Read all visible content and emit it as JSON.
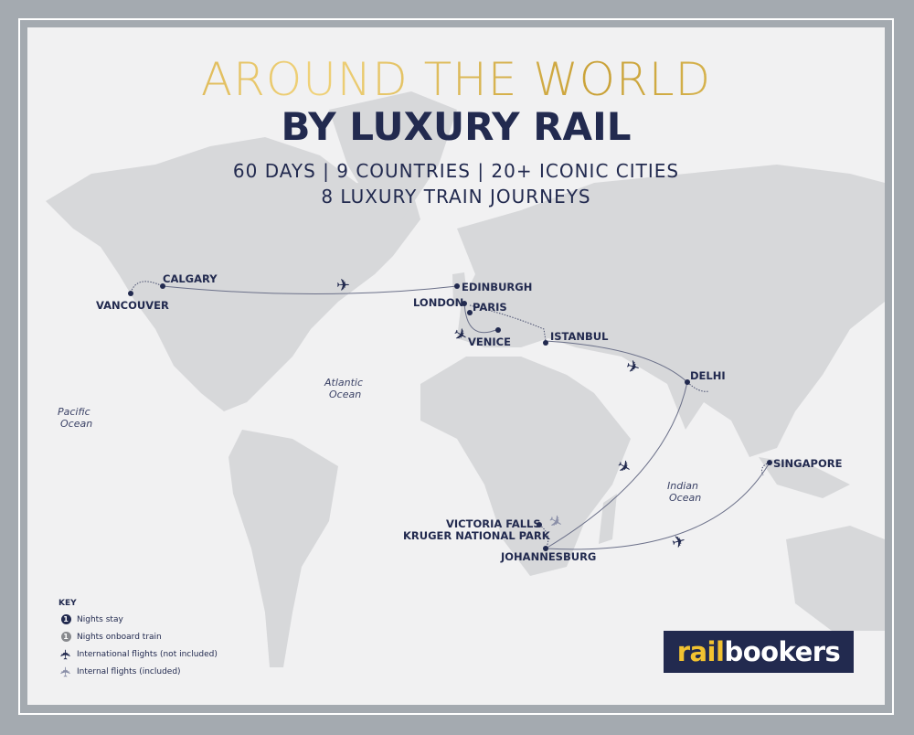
{
  "title": {
    "line1": "AROUND THE WORLD",
    "line2": "BY LUXURY RAIL"
  },
  "subtitle": {
    "line1": "60 DAYS | 9 COUNTRIES | 20+ ICONIC CITIES",
    "line2": "8 LUXURY TRAIN JOURNEYS"
  },
  "cities": {
    "vancouver": "VANCOUVER",
    "calgary": "CALGARY",
    "edinburgh": "EDINBURGH",
    "london": "LONDON",
    "paris": "PARIS",
    "venice": "VENICE",
    "istanbul": "ISTANBUL",
    "delhi": "DELHI",
    "singapore": "SINGAPORE",
    "victoria_falls": "VICTORIA FALLS",
    "kruger": "KRUGER NATIONAL PARK",
    "johannesburg": "JOHANNESBURG"
  },
  "oceans": {
    "pacific": [
      "Pacific",
      "Ocean"
    ],
    "atlantic": [
      "Atlantic",
      "Ocean"
    ],
    "indian": [
      "Indian",
      "Ocean"
    ]
  },
  "key": {
    "title": "KEY",
    "items": [
      {
        "icon": "nights-stay-badge",
        "label": "Nights stay",
        "badge": "1"
      },
      {
        "icon": "nights-train-badge",
        "label": "Nights onboard train",
        "badge": "1"
      },
      {
        "icon": "plane-icon",
        "label": "International flights (not included)"
      },
      {
        "icon": "plane-light-icon",
        "label": "Internal flights (included)"
      }
    ]
  },
  "logo": {
    "part1": "rail",
    "part2": "bookers"
  },
  "colors": {
    "navy": "#222a4f",
    "gold": "#d2ac3e",
    "land": "#d7d8da",
    "frame": "#a4aab0",
    "internal_flight": "#8a8fa8"
  }
}
